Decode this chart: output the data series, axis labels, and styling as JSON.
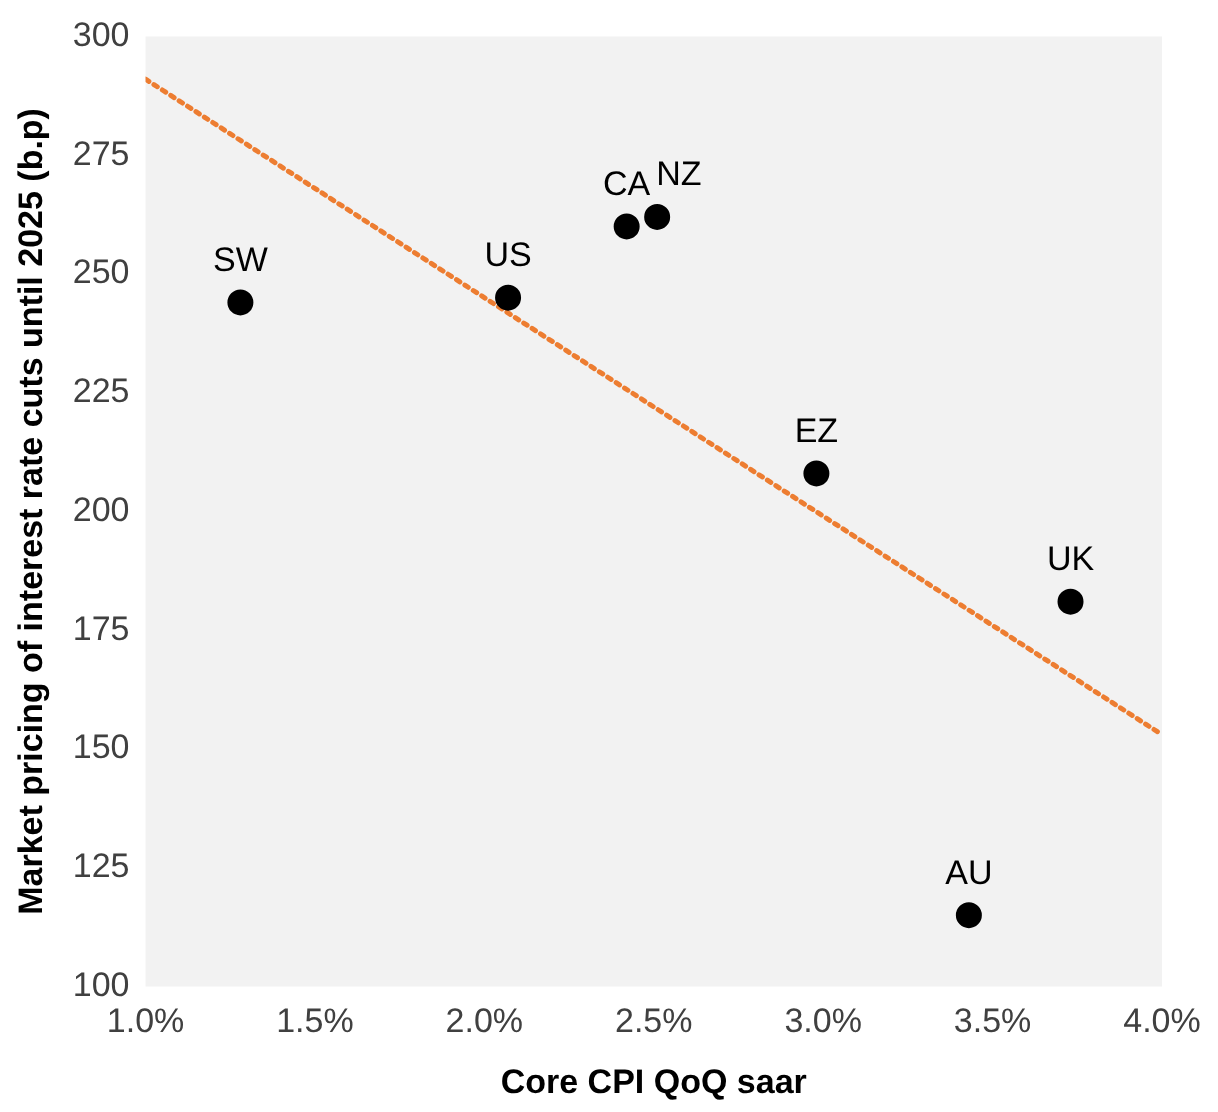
{
  "chart_data": {
    "type": "scatter",
    "xlabel": "Core CPI QoQ saar",
    "ylabel": "Market pricing of interest rate cuts until 2025 (b.p)",
    "xlim": [
      1,
      4
    ],
    "xticks": [
      {
        "value": 1,
        "label": "1.0%"
      },
      {
        "value": 1.5,
        "label": "1.5%"
      },
      {
        "value": 2,
        "label": "2.0%"
      },
      {
        "value": 2.5,
        "label": "2.5%"
      },
      {
        "value": 3,
        "label": "3.0%"
      },
      {
        "value": 3.5,
        "label": "3.5%"
      },
      {
        "value": 4,
        "label": "4.0%"
      }
    ],
    "ylim": [
      100,
      300
    ],
    "yticks": [
      100,
      125,
      150,
      175,
      200,
      225,
      250,
      275,
      300
    ],
    "grid": false,
    "legend": false,
    "marker": "circle",
    "series": [
      {
        "name": "SW",
        "color": "#000000",
        "x": [
          1.28
        ],
        "values": [
          244
        ]
      },
      {
        "name": "US",
        "color": "#000000",
        "x": [
          2.07
        ],
        "values": [
          245
        ]
      },
      {
        "name": "CA",
        "color": "#000000",
        "x": [
          2.42
        ],
        "values": [
          260
        ]
      },
      {
        "name": "NZ",
        "color": "#000000",
        "x": [
          2.51
        ],
        "values": [
          262
        ]
      },
      {
        "name": "EZ",
        "color": "#000000",
        "x": [
          2.98
        ],
        "values": [
          208
        ]
      },
      {
        "name": "UK",
        "color": "#000000",
        "x": [
          3.73
        ],
        "values": [
          181
        ]
      },
      {
        "name": "AU",
        "color": "#000000",
        "x": [
          3.43
        ],
        "values": [
          115
        ]
      },
      {
        "type": "line",
        "color": "#ed7d31",
        "line_style": "dotted",
        "marker": "none",
        "x": [
          1,
          4
        ],
        "values": [
          291,
          153
        ]
      }
    ]
  }
}
